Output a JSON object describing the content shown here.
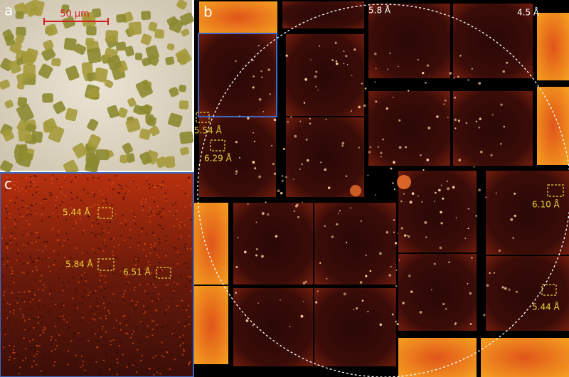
{
  "panels": {
    "a": {
      "label": "a",
      "scale_bar": "50 μm"
    },
    "b": {
      "label": "b",
      "rings": [
        "5.8 Å",
        "4.5 Å"
      ],
      "spots": [
        "5.54 Å",
        "6.29 Å",
        "6.10 Å",
        "5.44 Å"
      ]
    },
    "c": {
      "label": "c",
      "spots": [
        "5.44 Å",
        "5.84 Å",
        "6.51 Å"
      ]
    }
  }
}
